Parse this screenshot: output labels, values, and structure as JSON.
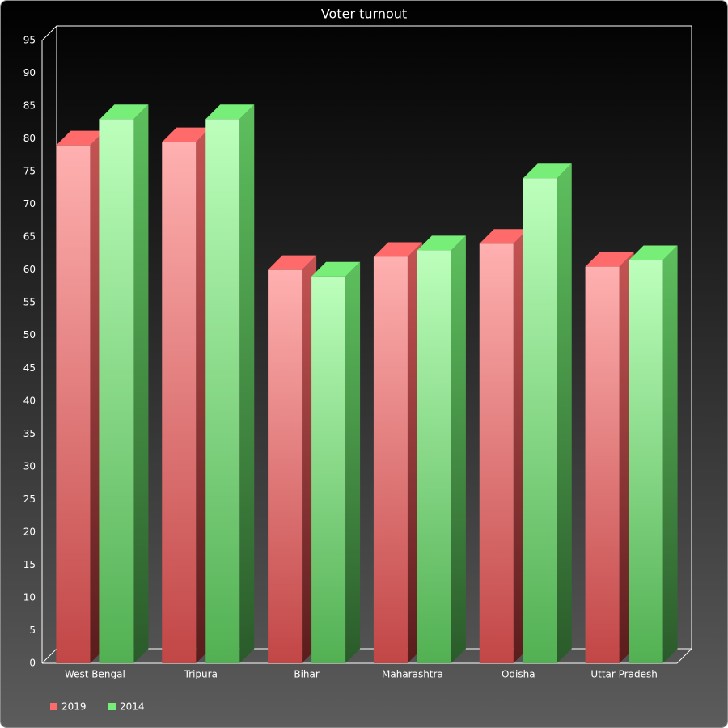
{
  "chart_data": {
    "type": "bar3d",
    "title": "Voter turnout",
    "categories": [
      "West Bengal",
      "Tripura",
      "Bihar",
      "Maharashtra",
      "Odisha",
      "Uttar Pradesh"
    ],
    "series": [
      {
        "name": "2019",
        "color": "#ff6b6b",
        "values": [
          79,
          79.5,
          60,
          62,
          64,
          60.5
        ]
      },
      {
        "name": "2014",
        "color": "#77ee77",
        "values": [
          83,
          83,
          59,
          63,
          74,
          61.5
        ]
      }
    ],
    "ylim": [
      0,
      95
    ],
    "yticks": [
      0,
      5,
      10,
      15,
      20,
      25,
      30,
      35,
      40,
      45,
      50,
      55,
      60,
      65,
      70,
      75,
      80,
      85,
      90,
      95
    ],
    "grid": false,
    "legend": "bottom-left"
  }
}
